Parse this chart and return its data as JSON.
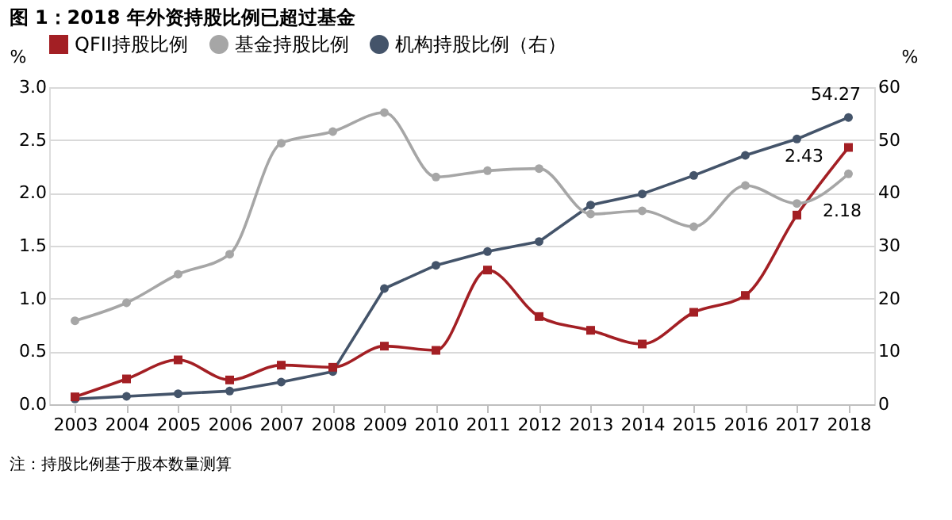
{
  "chart_data": {
    "type": "line",
    "title": "图 1：2018 年外资持股比例已超过基金",
    "ylabel": "%",
    "y2label": "%",
    "categories": [
      "2003",
      "2004",
      "2005",
      "2006",
      "2007",
      "2008",
      "2009",
      "2010",
      "2011",
      "2012",
      "2013",
      "2014",
      "2015",
      "2016",
      "2017",
      "2018"
    ],
    "series": [
      {
        "name": "QFII持股比例",
        "color": "#a31f24",
        "marker": "square",
        "values": [
          0.07,
          0.24,
          0.42,
          0.23,
          0.37,
          0.35,
          0.55,
          0.51,
          1.27,
          0.83,
          0.7,
          0.57,
          0.87,
          1.03,
          1.79,
          2.43
        ],
        "value_labels": [
          null,
          null,
          null,
          null,
          null,
          null,
          null,
          null,
          null,
          null,
          null,
          null,
          null,
          null,
          null,
          "2.43"
        ]
      },
      {
        "name": "基金持股比例",
        "color": "#a6a6a6",
        "marker": "circle",
        "values": [
          0.79,
          0.96,
          1.23,
          1.42,
          2.47,
          2.58,
          2.76,
          2.15,
          2.21,
          2.23,
          1.8,
          1.83,
          1.68,
          2.07,
          1.9,
          2.18
        ],
        "value_labels": [
          null,
          null,
          null,
          null,
          null,
          null,
          null,
          null,
          null,
          null,
          null,
          null,
          null,
          null,
          null,
          "2.18"
        ]
      },
      {
        "name": "机构持股比例（右）",
        "color": "#44546a",
        "marker": "circle",
        "axis": "y2",
        "values": [
          1.0,
          1.5,
          2.0,
          2.5,
          4.2,
          6.2,
          21.9,
          26.3,
          28.9,
          30.8,
          37.7,
          39.8,
          43.3,
          47.1,
          50.2,
          54.27
        ],
        "value_labels": [
          null,
          null,
          null,
          null,
          null,
          null,
          null,
          null,
          null,
          null,
          null,
          null,
          null,
          null,
          null,
          "54.27"
        ]
      }
    ],
    "ylim": [
      0,
      3.0
    ],
    "yticks": [
      {
        "value": 0,
        "label": "0.0"
      },
      {
        "value": 0.5,
        "label": "0.5"
      },
      {
        "value": 1.0,
        "label": "1.0"
      },
      {
        "value": 1.5,
        "label": "1.5"
      },
      {
        "value": 2.0,
        "label": "2.0"
      },
      {
        "value": 2.5,
        "label": "2.5"
      },
      {
        "value": 3.0,
        "label": "3.0"
      }
    ],
    "y2lim": [
      0,
      60
    ],
    "y2ticks": [
      0,
      10,
      20,
      30,
      40,
      50,
      60
    ],
    "grid": "y",
    "legend": "top",
    "annotations": [
      "注：持股比例基于股本数量测算"
    ]
  }
}
